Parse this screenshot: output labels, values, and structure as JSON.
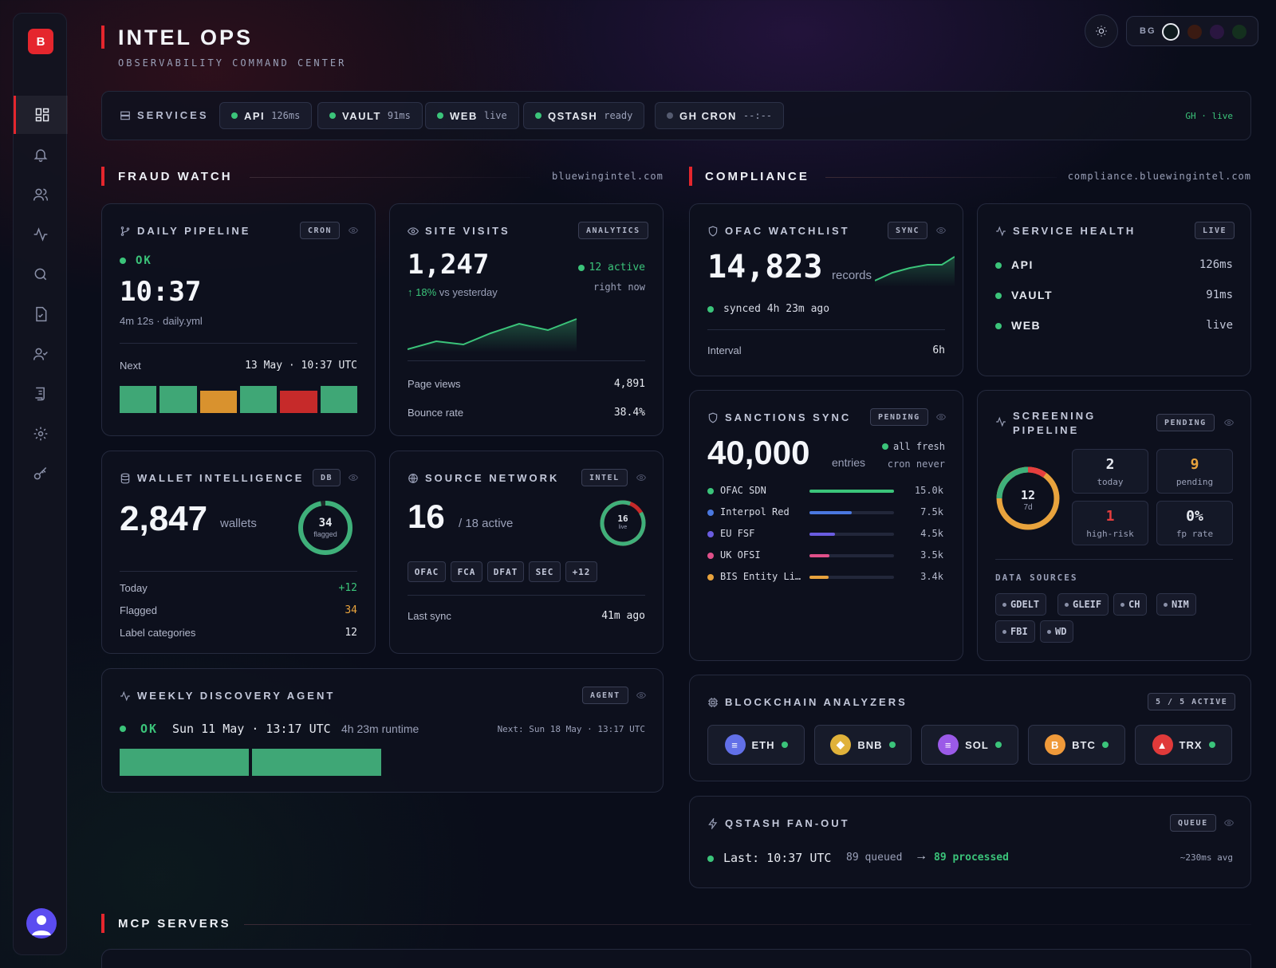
{
  "sidebar": {
    "logo": "B",
    "items": [
      {
        "icon": "dashboard-icon"
      },
      {
        "icon": "bell-icon"
      },
      {
        "icon": "users-icon"
      },
      {
        "icon": "activity-icon"
      },
      {
        "icon": "search-icon"
      },
      {
        "icon": "file-check-icon"
      },
      {
        "icon": "user-check-icon"
      },
      {
        "icon": "scroll-icon"
      },
      {
        "icon": "gear-icon"
      },
      {
        "icon": "key-icon"
      }
    ]
  },
  "header": {
    "title": "INTEL OPS",
    "subtitle": "OBSERVABILITY COMMAND CENTER",
    "bg_label": "BG",
    "swatches": [
      "#0f1a1e",
      "#3a1a12",
      "#2a1640",
      "#14301e"
    ]
  },
  "services": {
    "label": "SERVICES",
    "items": [
      {
        "name": "API",
        "value": "126ms",
        "status": "up"
      },
      {
        "name": "VAULT",
        "value": "91ms",
        "status": "up"
      },
      {
        "name": "WEB",
        "value": "live",
        "status": "up"
      },
      {
        "name": "QSTASH",
        "value": "ready",
        "status": "up"
      },
      {
        "name": "GH CRON",
        "value": "--:--",
        "status": "idle"
      }
    ],
    "gh_status": "GH · live"
  },
  "fraud": {
    "title": "FRAUD WATCH",
    "domain": "bluewingintel.com",
    "daily": {
      "title": "DAILY PIPELINE",
      "tag": "CRON",
      "status": "OK",
      "time": "10:37",
      "meta": "4m 12s · daily.yml",
      "next_label": "Next",
      "next_value": "13 May · 10:37 UTC",
      "bars": [
        "#3fa776",
        "#3fa776",
        "#d9922e",
        "#3fa776",
        "#c62a2a",
        "#3fa776"
      ]
    },
    "visits": {
      "title": "SITE VISITS",
      "tag": "ANALYTICS",
      "count": "1,247",
      "active": "12 active",
      "active_sub": "right now",
      "delta": "18%",
      "delta_label": "vs yesterday",
      "rows": [
        {
          "k": "Page views",
          "v": "4,891"
        },
        {
          "k": "Bounce rate",
          "v": "38.4%"
        }
      ]
    },
    "wallet": {
      "title": "WALLET INTELLIGENCE",
      "tag": "DB",
      "count": "2,847",
      "unit": "wallets",
      "ring_value": "34",
      "ring_label": "flagged",
      "ring_fraction": 0.97,
      "rows": [
        {
          "k": "Today",
          "v": "+12"
        },
        {
          "k": "Flagged",
          "v": "34"
        },
        {
          "k": "Label categories",
          "v": "12"
        }
      ]
    },
    "source": {
      "title": "SOURCE NETWORK",
      "tag": "INTEL",
      "count": "16",
      "sub": "/ 18 active",
      "ring_value": "16",
      "ring_label": "live",
      "ring_fraction": 0.889,
      "tags": [
        "OFAC",
        "FCA",
        "DFAT",
        "SEC",
        "+12"
      ],
      "last_label": "Last sync",
      "last_value": "41m ago"
    },
    "weekly": {
      "title": "WEEKLY DISCOVERY AGENT",
      "tag": "AGENT",
      "status": "OK",
      "date": "Sun 11 May · 13:17 UTC",
      "runtime": "4h 23m runtime",
      "next": "Next: Sun 18 May · 13:17 UTC"
    }
  },
  "compliance": {
    "title": "COMPLIANCE",
    "domain": "compliance.bluewingintel.com",
    "ofac": {
      "title": "OFAC WATCHLIST",
      "tag": "SYNC",
      "count": "14,823",
      "unit": "records",
      "synced": "synced 4h 23m ago",
      "interval_label": "Interval",
      "interval_value": "6h"
    },
    "health": {
      "title": "SERVICE HEALTH",
      "tag": "LIVE",
      "rows": [
        {
          "name": "API",
          "value": "126ms"
        },
        {
          "name": "VAULT",
          "value": "91ms"
        },
        {
          "name": "WEB",
          "value": "live"
        }
      ]
    },
    "sanctions": {
      "title": "SANCTIONS SYNC",
      "tag": "PENDING",
      "count": "40,000",
      "unit": "entries",
      "fresh": "all fresh",
      "cron": "cron never",
      "sources": [
        {
          "name": "OFAC SDN",
          "value": "15.0k",
          "fraction": 1.0,
          "color": "#3bc47a"
        },
        {
          "name": "Interpol Red",
          "value": "7.5k",
          "fraction": 0.5,
          "color": "#4a78e0"
        },
        {
          "name": "EU FSF",
          "value": "4.5k",
          "fraction": 0.3,
          "color": "#6a5ce0"
        },
        {
          "name": "UK OFSI",
          "value": "3.5k",
          "fraction": 0.233,
          "color": "#e0508a"
        },
        {
          "name": "BIS Entity Li…",
          "value": "3.4k",
          "fraction": 0.227,
          "color": "#e8a33d"
        }
      ]
    },
    "screening": {
      "title_1": "SCREENING",
      "title_2": "PIPELINE",
      "tag": "PENDING",
      "ring_value": "12",
      "ring_label": "7d",
      "stats": [
        {
          "n": "2",
          "l": "today",
          "color": "#f4f6fa"
        },
        {
          "n": "9",
          "l": "pending",
          "color": "#e8a33d"
        },
        {
          "n": "1",
          "l": "high-risk",
          "color": "#e53e3e"
        },
        {
          "n": "0%",
          "l": "fp rate",
          "color": "#f4f6fa"
        }
      ],
      "sources_label": "DATA SOURCES",
      "sources": [
        "GDELT",
        "GLEIF",
        "CH",
        "NIM",
        "FBI",
        "WD"
      ]
    },
    "chains": {
      "title": "BLOCKCHAIN ANALYZERS",
      "tag": "5 / 5 ACTIVE",
      "items": [
        {
          "name": "ETH",
          "color": "#6270e8",
          "glyph": "≡"
        },
        {
          "name": "BNB",
          "color": "#e0b23a",
          "glyph": "◆"
        },
        {
          "name": "SOL",
          "color": "#9b5ae8",
          "glyph": "≡"
        },
        {
          "name": "BTC",
          "color": "#f09a3a",
          "glyph": "B"
        },
        {
          "name": "TRX",
          "color": "#e03a3a",
          "glyph": "▲"
        }
      ]
    },
    "qstash": {
      "title": "QSTASH FAN-OUT",
      "tag": "QUEUE",
      "last": "Last: 10:37 UTC",
      "queued": "89 queued",
      "processed": "89 processed",
      "avg": "~230ms avg"
    }
  },
  "mcp": {
    "title": "MCP SERVERS"
  }
}
